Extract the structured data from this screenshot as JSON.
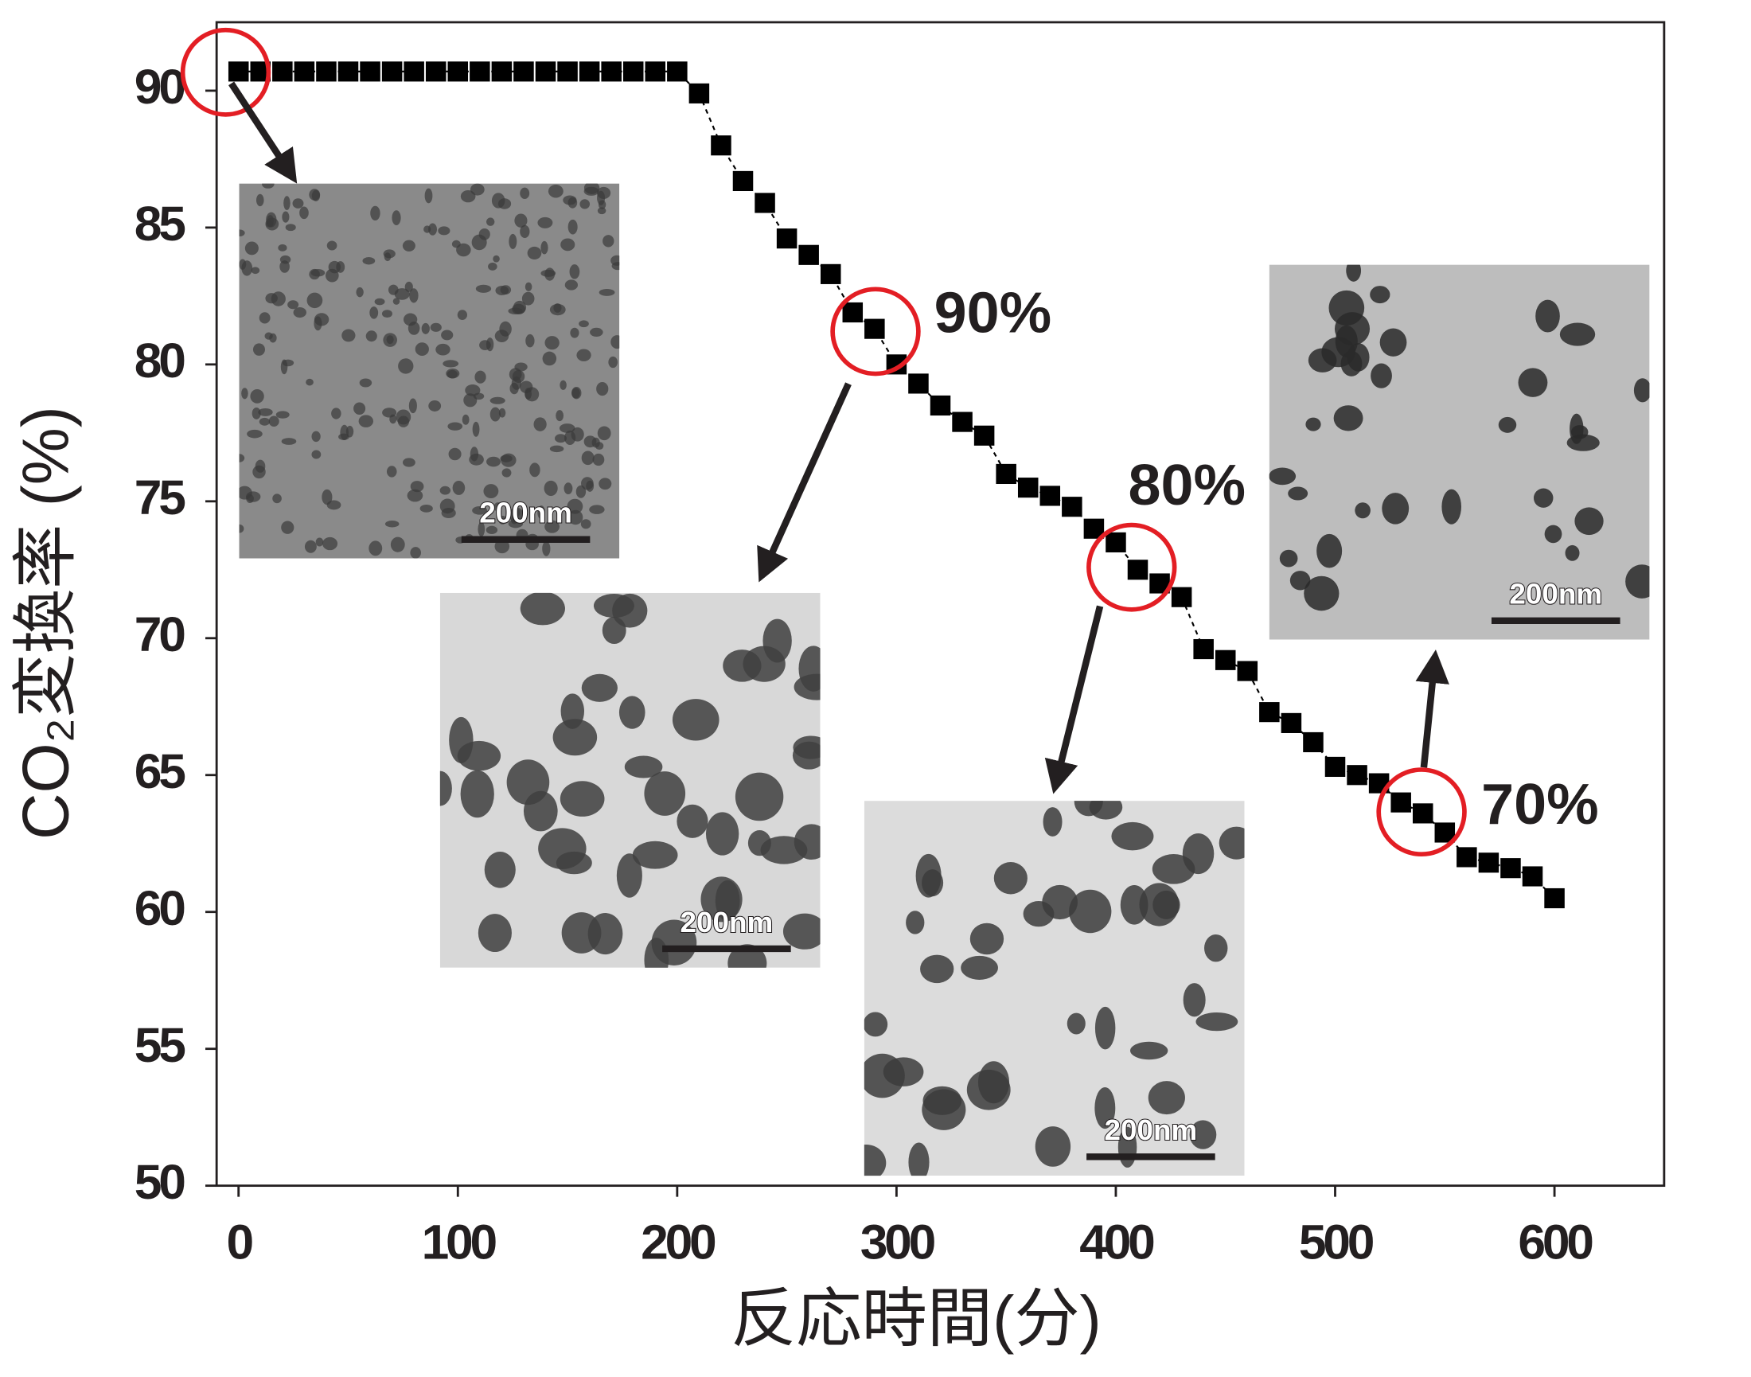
{
  "chart_data": {
    "type": "line",
    "xlabel": "反応時間(分)",
    "ylabel": "CO₂変換率 (%)",
    "x": [
      0,
      10,
      20,
      30,
      40,
      50,
      60,
      70,
      80,
      90,
      100,
      110,
      120,
      130,
      140,
      150,
      160,
      170,
      180,
      190,
      200,
      210,
      220,
      230,
      240,
      250,
      260,
      270,
      280,
      290,
      300,
      310,
      320,
      330,
      340,
      350,
      360,
      370,
      380,
      390,
      400,
      410,
      420,
      430,
      440,
      450,
      460,
      470,
      480,
      490,
      500,
      510,
      520,
      530,
      540,
      550,
      560,
      570,
      580,
      590,
      600
    ],
    "series": [
      {
        "color": "#000000",
        "values": [
          90.7,
          90.7,
          90.7,
          90.7,
          90.7,
          90.7,
          90.7,
          90.7,
          90.7,
          90.7,
          90.7,
          90.7,
          90.7,
          90.7,
          90.7,
          90.7,
          90.7,
          90.7,
          90.7,
          90.7,
          90.7,
          89.9,
          88.0,
          86.7,
          85.9,
          84.6,
          84.0,
          83.3,
          81.9,
          81.3,
          80.0,
          79.3,
          78.5,
          77.9,
          77.4,
          76.0,
          75.5,
          75.2,
          74.8,
          74.0,
          73.5,
          72.5,
          72.0,
          71.5,
          69.6,
          69.2,
          68.8,
          67.3,
          66.9,
          66.2,
          65.3,
          65.0,
          64.7,
          64.0,
          63.6,
          62.9,
          62.0,
          61.8,
          61.6,
          61.3,
          60.5
        ]
      }
    ],
    "xlim": [
      -10,
      650
    ],
    "xticks": [
      0,
      100,
      200,
      300,
      400,
      500,
      600
    ],
    "ylim": [
      50,
      92.5
    ],
    "yticks": [
      50,
      55,
      60,
      65,
      70,
      75,
      80,
      85,
      90
    ],
    "annotations": [
      "90%",
      "80%",
      "70%"
    ],
    "scale_bars": [
      "200nm",
      "200nm",
      "200nm",
      "200nm"
    ]
  }
}
